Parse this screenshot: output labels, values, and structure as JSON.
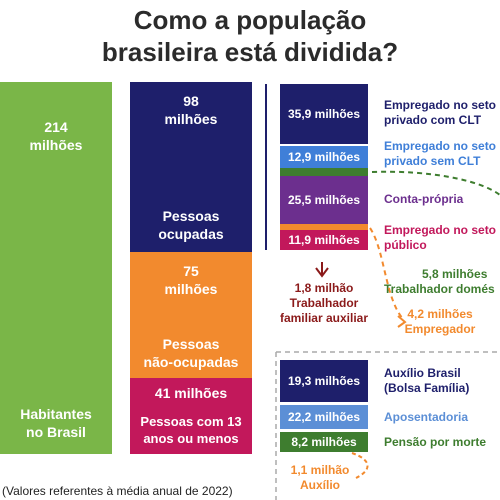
{
  "title_line1": "Como a população",
  "title_line2": "brasileira está dividida?",
  "footnote": "(Valores referentes à média anual de 2022)",
  "colors": {
    "green": "#7ab648",
    "navy": "#1e1f6b",
    "orange": "#f28a2e",
    "crimson": "#c2185b",
    "blue": "#3f7fd8",
    "purple": "#6c2f8e",
    "darkgreen": "#3e7d2f",
    "lightblue": "#5c8fd6"
  },
  "chart_data": {
    "type": "bar",
    "title": "Como a população brasileira está dividida?",
    "note": "(Valores referentes à média anual de 2022)",
    "habitantes": {
      "value": "214",
      "unit": "milhões",
      "label_1": "Habitantes",
      "label_2": "no Brasil"
    },
    "ocupadas": {
      "value": "98",
      "unit": "milhões",
      "label_1": "Pessoas",
      "label_2": "ocupadas"
    },
    "nao_ocupadas": {
      "value": "75",
      "unit": "milhões",
      "label_1": "Pessoas",
      "label_2": "não-ocupadas"
    },
    "criancas": {
      "value": "41 milhões",
      "label_1": "Pessoas com 13",
      "label_2": "anos ou menos"
    },
    "ocupacao": [
      {
        "value": "35,9 milhões",
        "label_1": "Empregado no seto",
        "label_2": "privado com CLT",
        "color": "#1e1f6b"
      },
      {
        "value": "12,9 milhões",
        "label_1": "Empregado no seto",
        "label_2": "privado sem CLT",
        "color": "#3f7fd8"
      },
      {
        "value": "25,5 milhões",
        "label_1": "Conta-própria",
        "label_2": "",
        "color": "#6c2f8e"
      },
      {
        "value": "11,9 milhões",
        "label_1": "Empregado no seto",
        "label_2": "público",
        "color": "#c2185b"
      }
    ],
    "familiar": {
      "value": "1,8 milhão",
      "label_1": "Trabalhador",
      "label_2": "familiar auxiliar"
    },
    "domestico": {
      "value": "5,8 milhões",
      "label": "Trabalhador domés"
    },
    "empregador": {
      "value": "4,2 milhões",
      "label": "Empregador"
    },
    "beneficios": [
      {
        "value": "19,3 milhões",
        "label_1": "Auxílio Brasil",
        "label_2": "(Bolsa Família)",
        "color": "#1e1f6b"
      },
      {
        "value": "22,2 milhões",
        "label_1": "Aposentadoria",
        "label_2": "",
        "color": "#5c8fd6"
      },
      {
        "value": "8,2 milhões",
        "label_1": "Pensão por morte",
        "label_2": "",
        "color": "#3e7d2f"
      }
    ],
    "auxilio": {
      "value": "1,1 milhão",
      "label": "Auxílio"
    }
  }
}
